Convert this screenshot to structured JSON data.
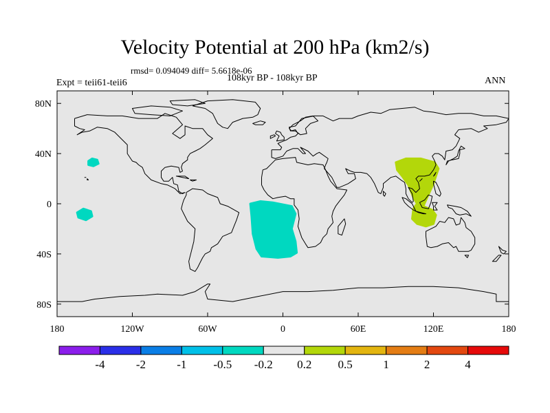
{
  "title": "Velocity Potential at 200 hPa (km2/s)",
  "stats": "rmsd= 0.094049 diff= 5.6618e-06",
  "experiment": "Expt = teii61-teii6",
  "period": "108kyr BP - 108kyr BP",
  "season": "ANN",
  "map": {
    "lon_range": [
      -180,
      180
    ],
    "lat_range": [
      -90,
      90
    ],
    "background": "#e6e6e6",
    "coastline_color": "#000000",
    "lat_ticks": [
      {
        "lat": 80,
        "label": "80N"
      },
      {
        "lat": 40,
        "label": "40N"
      },
      {
        "lat": 0,
        "label": "0"
      },
      {
        "lat": -40,
        "label": "40S"
      },
      {
        "lat": -80,
        "label": "80S"
      }
    ],
    "lon_ticks": [
      {
        "lon": -180,
        "label": "180"
      },
      {
        "lon": -120,
        "label": "120W"
      },
      {
        "lon": -60,
        "label": "60W"
      },
      {
        "lon": 0,
        "label": "0"
      },
      {
        "lon": 60,
        "label": "60E"
      },
      {
        "lon": 120,
        "label": "120E"
      },
      {
        "lon": 180,
        "label": "180"
      }
    ]
  },
  "anomalies": [
    {
      "name": "north-pacific-negative",
      "range": "-0.5 to -0.2",
      "color": "#00d8c0",
      "outline": [
        [
          -155,
          34
        ],
        [
          -152,
          36
        ],
        [
          -148,
          35
        ],
        [
          -147,
          32
        ],
        [
          -151,
          30
        ],
        [
          -155,
          31
        ]
      ]
    },
    {
      "name": "south-pacific-negative",
      "range": "-0.5 to -0.2",
      "color": "#00d8c0",
      "outline": [
        [
          -164,
          -7
        ],
        [
          -159,
          -4
        ],
        [
          -153,
          -6
        ],
        [
          -152,
          -10
        ],
        [
          -157,
          -13
        ],
        [
          -163,
          -11
        ]
      ]
    },
    {
      "name": "south-atlantic-negative",
      "range": "-0.5 to -0.2",
      "color": "#00d8c0",
      "outline": [
        [
          -26,
          0
        ],
        [
          -18,
          2
        ],
        [
          -8,
          1
        ],
        [
          7,
          -2
        ],
        [
          10,
          -8
        ],
        [
          7,
          -20
        ],
        [
          10,
          -30
        ],
        [
          11,
          -39
        ],
        [
          6,
          -42
        ],
        [
          -4,
          -43
        ],
        [
          -17,
          -42
        ],
        [
          -21,
          -36
        ],
        [
          -24,
          -24
        ],
        [
          -25,
          -10
        ]
      ]
    },
    {
      "name": "asian-monsoon-positive",
      "range": "0.2 to 0.5",
      "color": "#b3d70a",
      "outline": [
        [
          90,
          33
        ],
        [
          98,
          36
        ],
        [
          110,
          36
        ],
        [
          121,
          33
        ],
        [
          124,
          28
        ],
        [
          120,
          16
        ],
        [
          115,
          5
        ],
        [
          111,
          -4
        ],
        [
          108,
          -2
        ],
        [
          104,
          5
        ],
        [
          100,
          15
        ],
        [
          95,
          22
        ],
        [
          91,
          27
        ]
      ]
    },
    {
      "name": "maritime-continent-positive",
      "range": "0.2 to 0.5",
      "color": "#b3d70a",
      "outline": [
        [
          104,
          -4
        ],
        [
          106,
          -1
        ],
        [
          112,
          -2
        ],
        [
          119,
          -5
        ],
        [
          122,
          -9
        ],
        [
          120,
          -16
        ],
        [
          114,
          -18
        ],
        [
          107,
          -16
        ],
        [
          103,
          -12
        ]
      ]
    }
  ],
  "colorbar": {
    "colors": [
      "#8b1eeb",
      "#2a2ee8",
      "#0a7ee6",
      "#00c0e8",
      "#00d8c0",
      "#e6e6e6",
      "#b3d70a",
      "#e3b510",
      "#e47d14",
      "#e34810",
      "#e60a0a"
    ],
    "labels": [
      "-4",
      "-2",
      "-1",
      "-0.5",
      "-0.2",
      "0.2",
      "0.5",
      "1",
      "2",
      "4"
    ]
  }
}
